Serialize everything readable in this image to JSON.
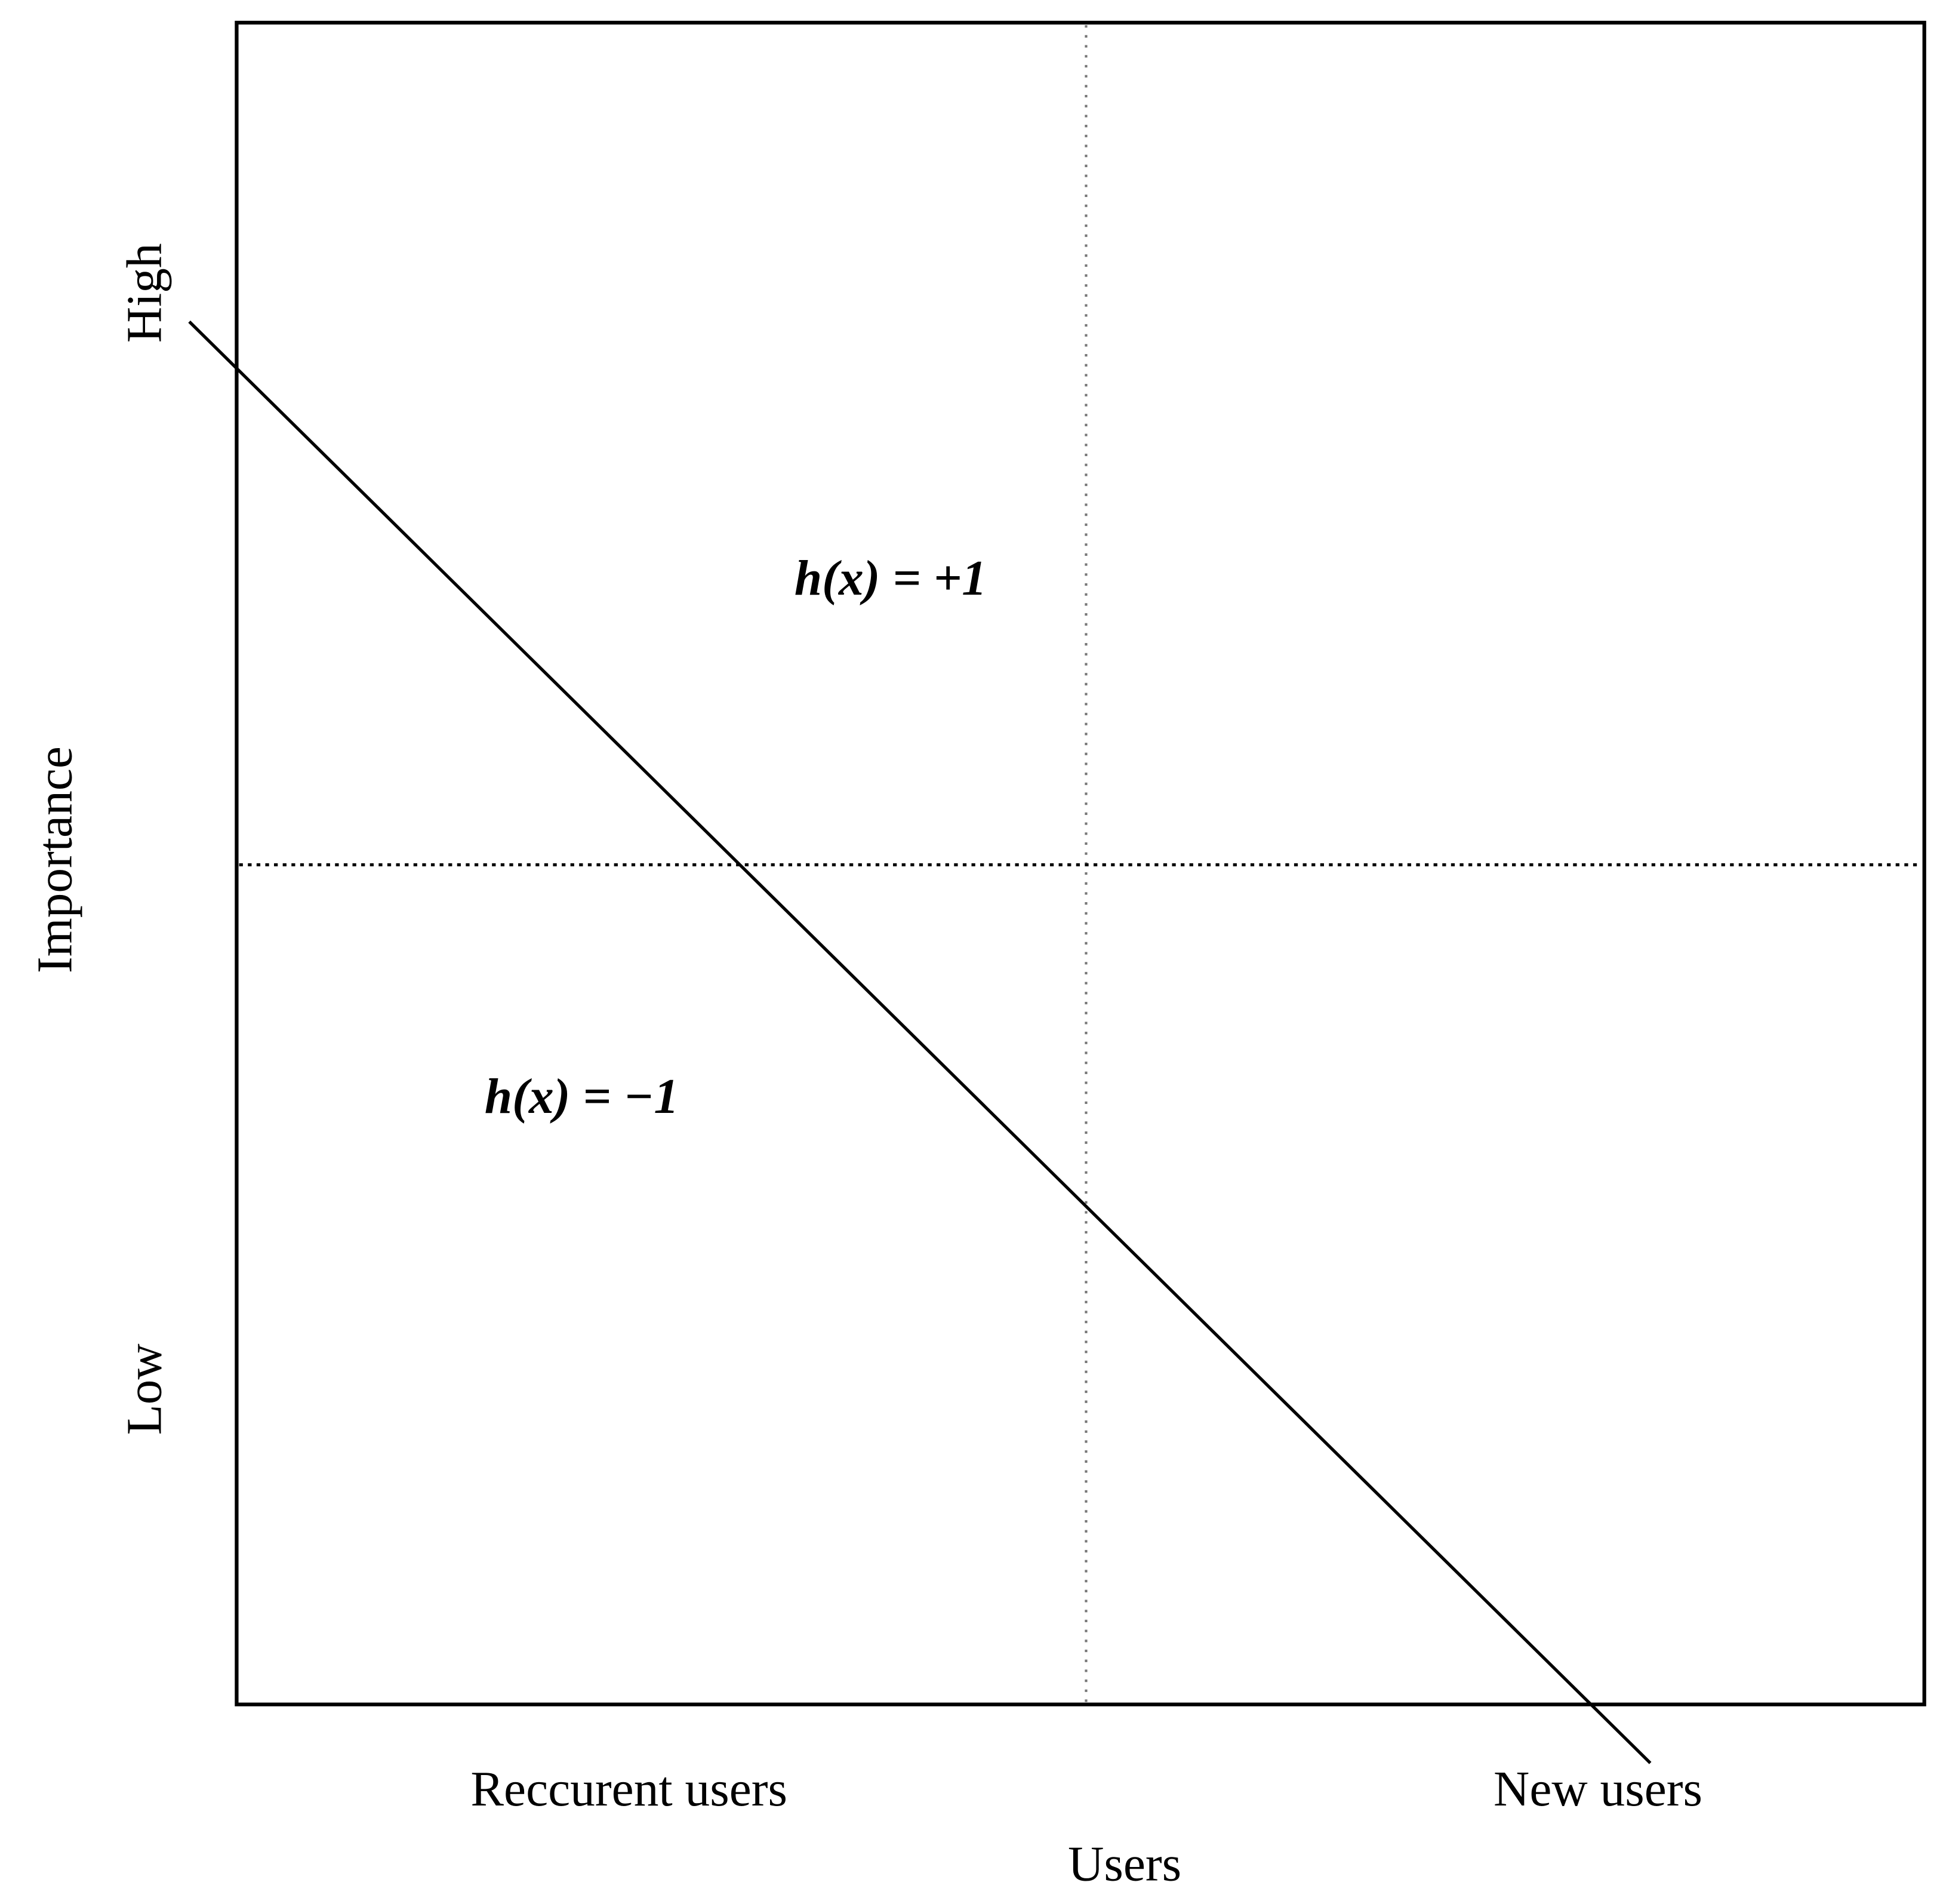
{
  "axes": {
    "y_label": "Importance",
    "y_high": "High",
    "y_low": "Low",
    "x_label": "Users",
    "x_left": "Reccurent users",
    "x_right": "New users"
  },
  "regions": [
    "h(x) = +1",
    "h(x) = −1"
  ]
}
